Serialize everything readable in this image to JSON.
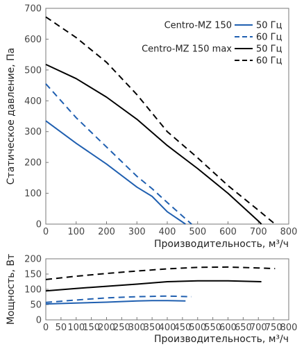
{
  "chart_data": [
    {
      "type": "line",
      "title": "",
      "xlabel": "Производительность, м³/ч",
      "ylabel": "Статическое давление, Па",
      "xlim": [
        0,
        800
      ],
      "ylim": [
        0,
        700
      ],
      "xticks": [
        "0",
        "100",
        "200",
        "300",
        "400",
        "500",
        "600",
        "700",
        "800"
      ],
      "yticks": [
        "0",
        "100",
        "200",
        "300",
        "400",
        "500",
        "600",
        "700"
      ],
      "grid": false,
      "legend_position": "top-right",
      "legend_groups": [
        {
          "label": "Centro-MZ 150",
          "color": "#1f5fb0"
        },
        {
          "label": "Centro-MZ 150 max",
          "color": "#000000"
        }
      ],
      "series": [
        {
          "name": "50 Гц",
          "group": "Centro-MZ 150",
          "color": "#1f5fb0",
          "dash": "solid",
          "x": [
            0,
            100,
            200,
            300,
            350,
            400,
            460
          ],
          "y": [
            335,
            262,
            195,
            120,
            90,
            40,
            0
          ]
        },
        {
          "name": "60 Гц",
          "group": "Centro-MZ 150",
          "color": "#1f5fb0",
          "dash": "dashed",
          "x": [
            0,
            100,
            200,
            300,
            350,
            400,
            440,
            480
          ],
          "y": [
            455,
            345,
            250,
            155,
            115,
            70,
            35,
            0
          ]
        },
        {
          "name": "50 Гц",
          "group": "Centro-MZ 150 max",
          "color": "#000000",
          "dash": "solid",
          "x": [
            0,
            100,
            200,
            300,
            400,
            500,
            600,
            700,
            710
          ],
          "y": [
            518,
            472,
            412,
            340,
            255,
            180,
            100,
            10,
            0
          ]
        },
        {
          "name": "60 Гц",
          "group": "Centro-MZ 150 max",
          "color": "#000000",
          "dash": "dashed",
          "x": [
            0,
            100,
            200,
            300,
            400,
            500,
            600,
            700,
            755
          ],
          "y": [
            672,
            605,
            525,
            420,
            300,
            215,
            125,
            45,
            0
          ]
        }
      ]
    },
    {
      "type": "line",
      "title": "",
      "xlabel": "Производительность, м³/ч",
      "ylabel": "Мощность, Вт",
      "xlim": [
        0,
        800
      ],
      "ylim": [
        0,
        200
      ],
      "xticks": [
        "0",
        "50",
        "100",
        "150",
        "200",
        "250",
        "300",
        "350",
        "400",
        "450",
        "500",
        "550",
        "600",
        "650",
        "700",
        "750",
        "800"
      ],
      "yticks": [
        "0",
        "50",
        "100",
        "150",
        "200"
      ],
      "grid": false,
      "series": [
        {
          "name": "50 Гц",
          "group": "Centro-MZ 150",
          "color": "#1f5fb0",
          "dash": "solid",
          "x": [
            0,
            100,
            200,
            300,
            350,
            400,
            460
          ],
          "y": [
            52,
            55,
            58,
            62,
            63,
            63,
            62
          ]
        },
        {
          "name": "60 Гц",
          "group": "Centro-MZ 150",
          "color": "#1f5fb0",
          "dash": "dashed",
          "x": [
            0,
            100,
            200,
            300,
            400,
            480
          ],
          "y": [
            57,
            65,
            72,
            76,
            78,
            76
          ]
        },
        {
          "name": "50 Гц",
          "group": "Centro-MZ 150 max",
          "color": "#000000",
          "dash": "solid",
          "x": [
            0,
            100,
            200,
            300,
            400,
            500,
            600,
            710
          ],
          "y": [
            95,
            103,
            110,
            117,
            125,
            128,
            128,
            125
          ]
        },
        {
          "name": "60 Гц",
          "group": "Centro-MZ 150 max",
          "color": "#000000",
          "dash": "dashed",
          "x": [
            0,
            100,
            200,
            300,
            400,
            500,
            600,
            700,
            755
          ],
          "y": [
            132,
            143,
            152,
            160,
            167,
            172,
            173,
            170,
            168
          ]
        }
      ]
    }
  ]
}
